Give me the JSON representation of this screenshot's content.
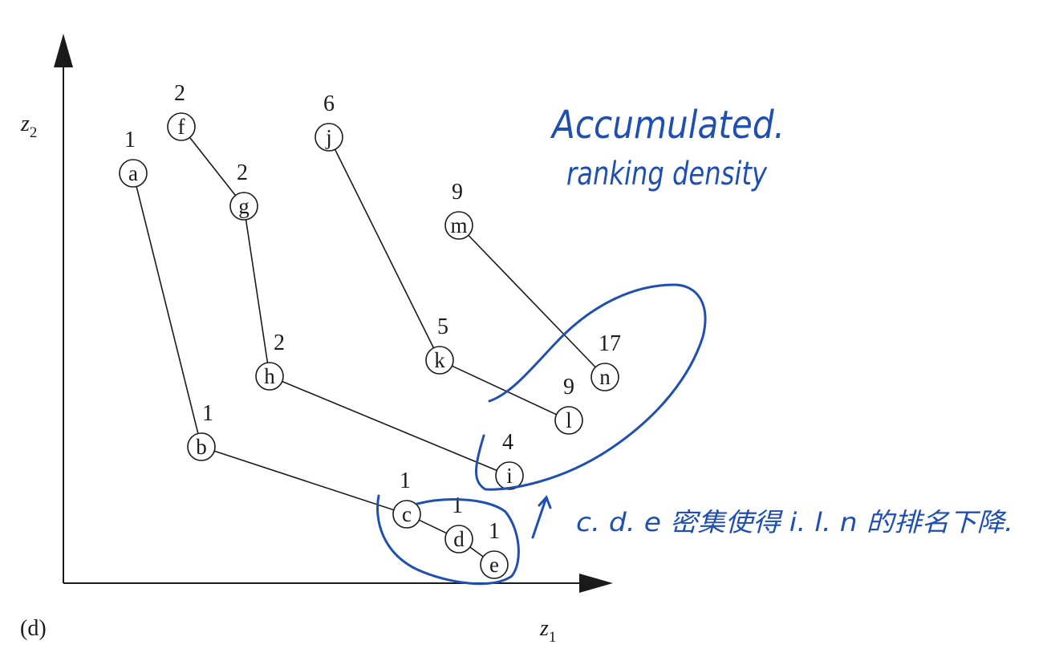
{
  "axes": {
    "y_label": "z",
    "y_sub": "2",
    "x_label": "z",
    "x_sub": "1",
    "panel_label": "(d)"
  },
  "nodes": [
    {
      "id": "a",
      "label": "a",
      "value": "1"
    },
    {
      "id": "b",
      "label": "b",
      "value": "1"
    },
    {
      "id": "c",
      "label": "c",
      "value": "1"
    },
    {
      "id": "d",
      "label": "d",
      "value": "1"
    },
    {
      "id": "e",
      "label": "e",
      "value": "1"
    },
    {
      "id": "f",
      "label": "f",
      "value": "2"
    },
    {
      "id": "g",
      "label": "g",
      "value": "2"
    },
    {
      "id": "h",
      "label": "h",
      "value": "2"
    },
    {
      "id": "i",
      "label": "i",
      "value": "4"
    },
    {
      "id": "j",
      "label": "j",
      "value": "6"
    },
    {
      "id": "k",
      "label": "k",
      "value": "5"
    },
    {
      "id": "l",
      "label": "l",
      "value": "9"
    },
    {
      "id": "m",
      "label": "m",
      "value": "9"
    },
    {
      "id": "n",
      "label": "n",
      "value": "17"
    }
  ],
  "edges": [
    [
      "a",
      "b"
    ],
    [
      "b",
      "c"
    ],
    [
      "c",
      "d"
    ],
    [
      "d",
      "e"
    ],
    [
      "f",
      "g"
    ],
    [
      "g",
      "h"
    ],
    [
      "h",
      "i"
    ],
    [
      "j",
      "k"
    ],
    [
      "k",
      "l"
    ],
    [
      "m",
      "n"
    ]
  ],
  "annotations": {
    "title_line1": "Accumulated.",
    "title_line2": "ranking density",
    "note": "c. d. e 密集使得 i. l. n 的排名下降."
  },
  "colors": {
    "ink": "#1a1a1a",
    "handwriting": "#1f4fb0"
  }
}
